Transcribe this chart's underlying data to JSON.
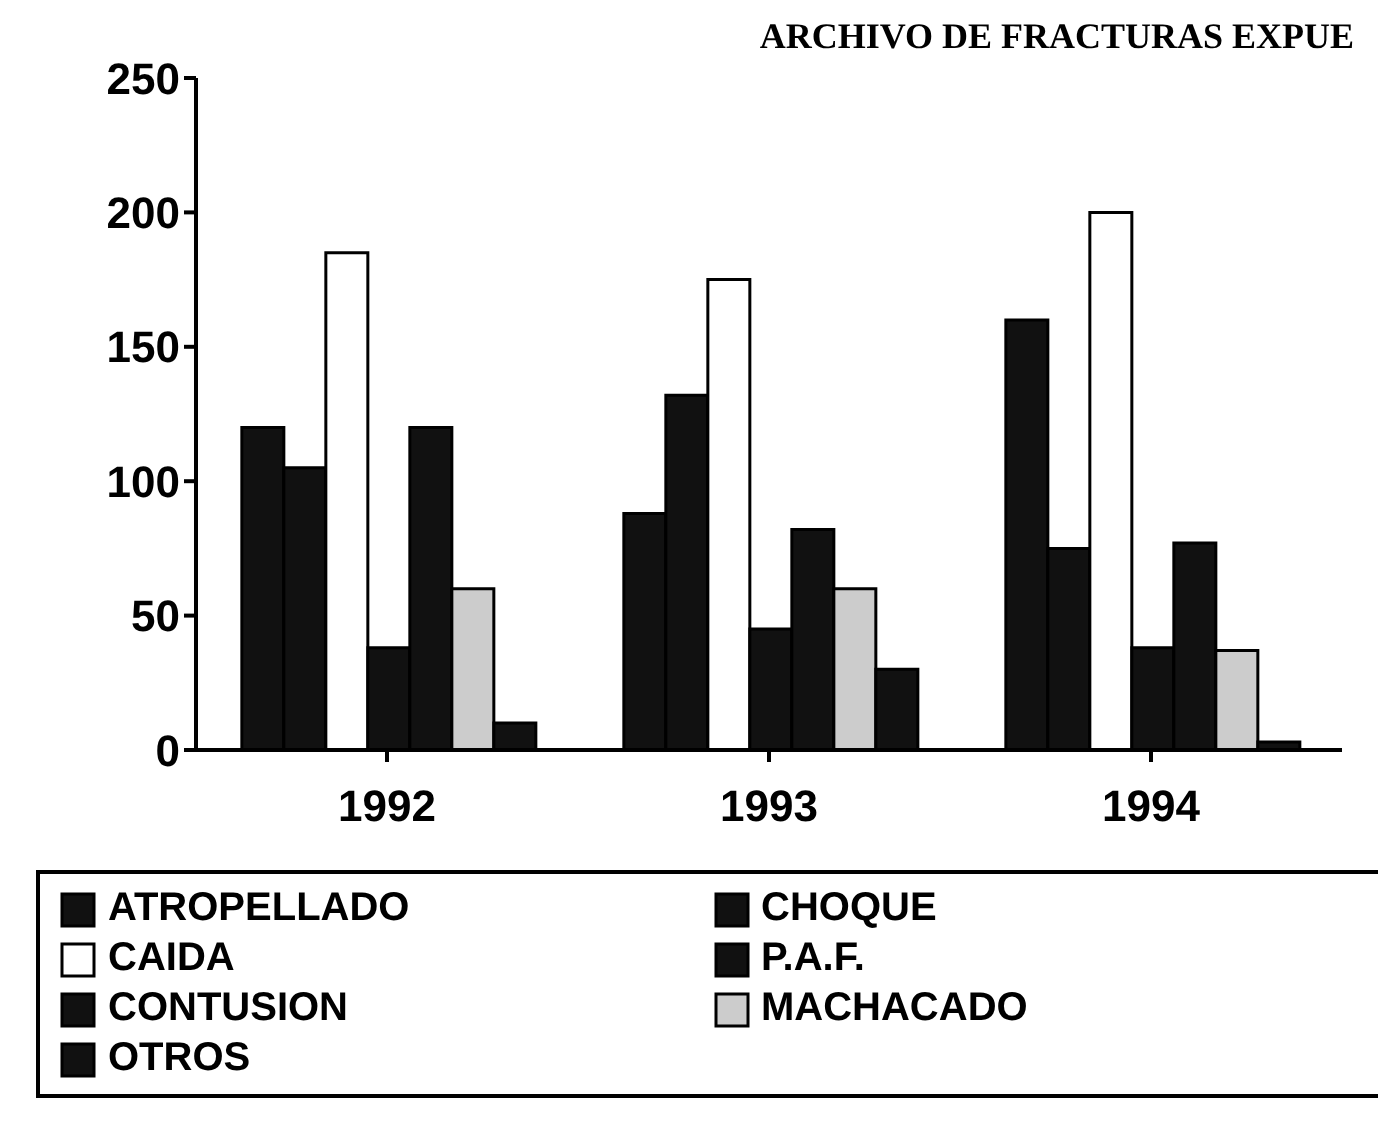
{
  "chart_data": {
    "type": "bar",
    "title": "ARCHIVO DE FRACTURAS EXPUE",
    "categories": [
      "1992",
      "1993",
      "1994"
    ],
    "series": [
      {
        "name": "ATROPELLADO",
        "color": "#111111",
        "values": [
          120,
          88,
          160
        ]
      },
      {
        "name": "CHOQUE",
        "color": "#111111",
        "values": [
          105,
          132,
          75
        ]
      },
      {
        "name": "CAIDA",
        "color": "#ffffff",
        "values": [
          185,
          175,
          200
        ]
      },
      {
        "name": "P.A.F.",
        "color": "#111111",
        "values": [
          38,
          45,
          38
        ]
      },
      {
        "name": "CONTUSION",
        "color": "#111111",
        "values": [
          120,
          82,
          77
        ]
      },
      {
        "name": "MACHACADO",
        "color": "#cccccc",
        "values": [
          60,
          60,
          37
        ]
      },
      {
        "name": "OTROS",
        "color": "#111111",
        "values": [
          10,
          30,
          3
        ]
      }
    ],
    "ylim": [
      0,
      250
    ],
    "yticks": [
      0,
      50,
      100,
      150,
      200,
      250
    ],
    "grid": false,
    "legend": "bottom"
  }
}
